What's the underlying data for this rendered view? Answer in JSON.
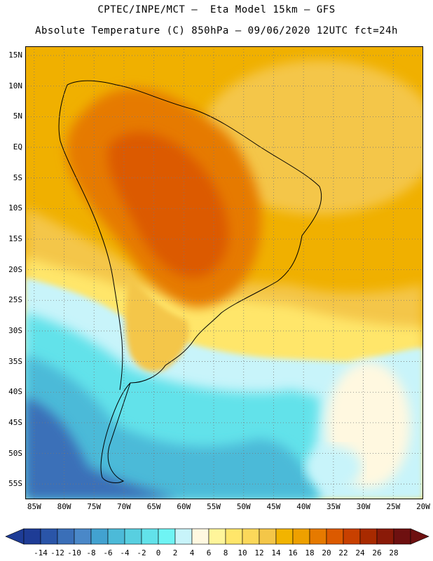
{
  "header": {
    "line1": "CPTEC/INPE/MCT —  Eta Model 15km — GFS",
    "line2": "Absolute Temperature (C) 850hPa — 09/06/2020 12UTC fct=24h"
  },
  "map": {
    "lat_labels": [
      "15N",
      "10N",
      "5N",
      "EQ",
      "5S",
      "10S",
      "15S",
      "20S",
      "25S",
      "30S",
      "35S",
      "40S",
      "45S",
      "50S",
      "55S"
    ],
    "lon_labels": [
      "85W",
      "80W",
      "75W",
      "70W",
      "65W",
      "60W",
      "55W",
      "50W",
      "45W",
      "40W",
      "35W",
      "30W",
      "25W",
      "20W"
    ],
    "lat_range": [
      -57.5,
      16.5
    ],
    "lon_range": [
      -86.5,
      -20.0
    ],
    "grid": "dotted",
    "ocean_color": "#f0b000",
    "land_warm_color": "#e06400"
  },
  "colorbar": {
    "labels": [
      "-14",
      "-12",
      "-10",
      "-8",
      "-6",
      "-4",
      "-2",
      "0",
      "2",
      "4",
      "6",
      "8",
      "10",
      "12",
      "14",
      "16",
      "18",
      "20",
      "22",
      "24",
      "26",
      "28"
    ],
    "colors": [
      "#1e3c96",
      "#2a55a8",
      "#3a6fb8",
      "#4a88c8",
      "#42a2d0",
      "#4cbad8",
      "#58cfe0",
      "#62e2ea",
      "#6ff4f4",
      "#c8f4fa",
      "#fff8e0",
      "#fff59a",
      "#ffe66a",
      "#fbd85a",
      "#f4c648",
      "#f2b400",
      "#eea000",
      "#e67a00",
      "#dc5a00",
      "#c84000",
      "#a82a00",
      "#8a1a08",
      "#6e1010"
    ]
  }
}
